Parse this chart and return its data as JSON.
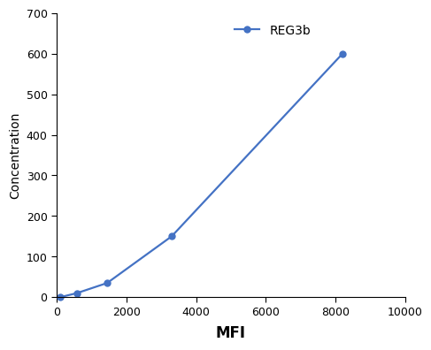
{
  "x": [
    100,
    580,
    1450,
    3300,
    8200
  ],
  "y": [
    0,
    10,
    35,
    150,
    600
  ],
  "line_color": "#4472C4",
  "marker": "o",
  "marker_size": 5,
  "line_width": 1.6,
  "legend_label": "REG3b",
  "xlabel": "MFI",
  "ylabel": "Concentration",
  "xlim": [
    0,
    10000
  ],
  "ylim": [
    0,
    700
  ],
  "xticks": [
    0,
    2000,
    4000,
    6000,
    8000,
    10000
  ],
  "yticks": [
    0,
    100,
    200,
    300,
    400,
    500,
    600,
    700
  ],
  "xlabel_fontsize": 12,
  "ylabel_fontsize": 10,
  "tick_fontsize": 9,
  "legend_fontsize": 10,
  "spine_color": "#000000",
  "tick_color": "#000000",
  "background_color": "#ffffff"
}
